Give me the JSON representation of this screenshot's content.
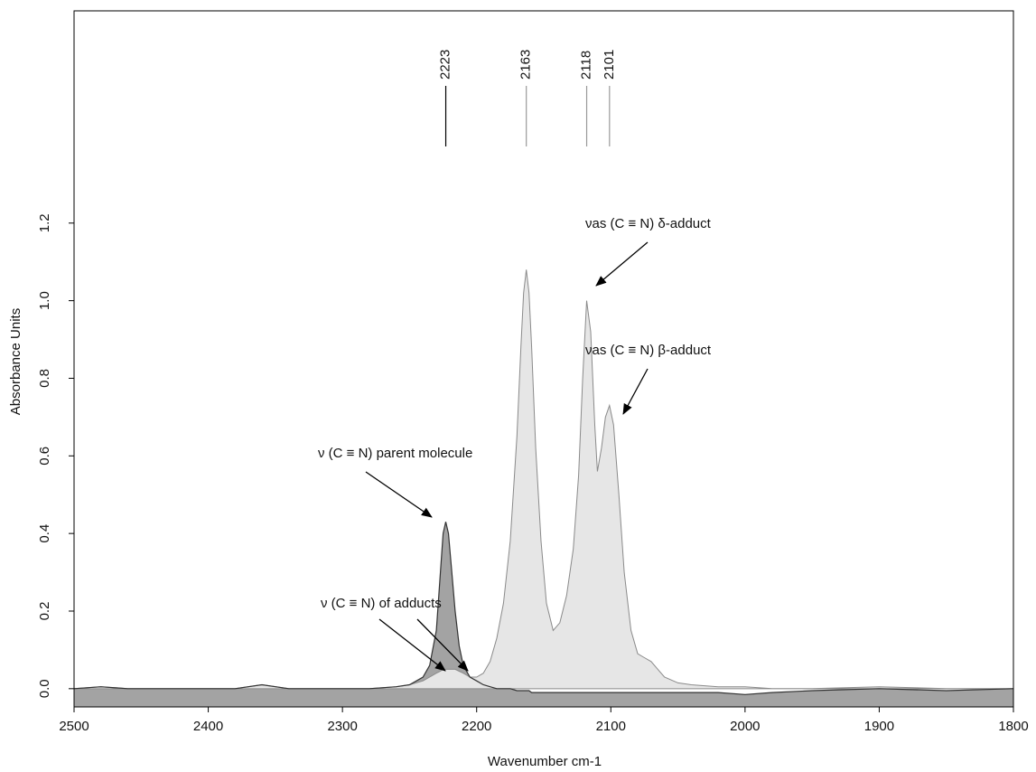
{
  "chart_data": {
    "type": "area",
    "x_label": "Wavenumber cm-1",
    "y_label": "Absorbance Units",
    "x": [
      2500,
      2480,
      2460,
      2440,
      2420,
      2400,
      2380,
      2360,
      2340,
      2320,
      2300,
      2280,
      2260,
      2250,
      2240,
      2235,
      2230,
      2227,
      2225,
      2223,
      2221,
      2219,
      2216,
      2213,
      2210,
      2205,
      2200,
      2195,
      2190,
      2185,
      2180,
      2175,
      2170,
      2167,
      2165,
      2163,
      2161,
      2159,
      2156,
      2152,
      2148,
      2143,
      2138,
      2133,
      2128,
      2124,
      2121,
      2118,
      2115,
      2112,
      2110,
      2107,
      2104,
      2101,
      2098,
      2094,
      2090,
      2085,
      2080,
      2075,
      2070,
      2065,
      2060,
      2050,
      2040,
      2020,
      2000,
      1980,
      1950,
      1900,
      1850,
      1800
    ],
    "series": [
      {
        "color": "#a3a3a3",
        "values": [
          0,
          0.005,
          0,
          0,
          0,
          0,
          0,
          0.01,
          0,
          0,
          0,
          0,
          0.005,
          0.01,
          0.03,
          0.06,
          0.15,
          0.3,
          0.4,
          0.43,
          0.4,
          0.32,
          0.2,
          0.11,
          0.06,
          0.03,
          0.02,
          0.01,
          0.005,
          0,
          0,
          0,
          -0.005,
          -0.005,
          -0.005,
          -0.005,
          -0.005,
          -0.01,
          -0.01,
          -0.01,
          -0.01,
          -0.01,
          -0.01,
          -0.01,
          -0.01,
          -0.01,
          -0.01,
          -0.01,
          -0.01,
          -0.01,
          -0.01,
          -0.01,
          -0.01,
          -0.01,
          -0.01,
          -0.01,
          -0.01,
          -0.01,
          -0.01,
          -0.01,
          -0.01,
          -0.01,
          -0.01,
          -0.01,
          -0.01,
          -0.01,
          -0.015,
          -0.01,
          -0.005,
          0,
          -0.005,
          0
        ]
      },
      {
        "color": "#e6e6e6",
        "values": [
          0,
          0.005,
          0,
          0,
          0,
          0,
          0,
          0.01,
          0,
          0,
          0,
          0,
          0.005,
          0.01,
          0.02,
          0.03,
          0.04,
          0.045,
          0.05,
          0.05,
          0.05,
          0.05,
          0.05,
          0.045,
          0.04,
          0.03,
          0.03,
          0.04,
          0.07,
          0.13,
          0.22,
          0.38,
          0.65,
          0.88,
          1.02,
          1.08,
          1.02,
          0.88,
          0.62,
          0.38,
          0.22,
          0.15,
          0.17,
          0.24,
          0.36,
          0.55,
          0.8,
          1.0,
          0.92,
          0.68,
          0.56,
          0.62,
          0.7,
          0.73,
          0.68,
          0.5,
          0.3,
          0.15,
          0.09,
          0.08,
          0.07,
          0.05,
          0.03,
          0.015,
          0.01,
          0.005,
          0.005,
          0,
          0,
          0.005,
          0,
          0
        ]
      }
    ],
    "xlim": [
      2500,
      1800
    ],
    "xticks": [
      2500,
      2400,
      2300,
      2200,
      2100,
      2000,
      1900,
      1800
    ],
    "ylim": [
      -0.047,
      1.747
    ],
    "yticks": [
      {
        "value": 0,
        "label": "0.0"
      },
      0.2,
      0.4,
      0.6,
      0.8,
      {
        "value": 1,
        "label": "1.0"
      },
      1.2
    ],
    "peak_markers": [
      2223,
      2163,
      2118,
      2101
    ],
    "annotations": [
      "νas (C ≡ N) δ-adduct",
      "νas (C ≡ N) β-adduct",
      "ν (C ≡ N) parent molecule",
      "ν (C ≡ N) of adducts"
    ],
    "grid": false
  }
}
